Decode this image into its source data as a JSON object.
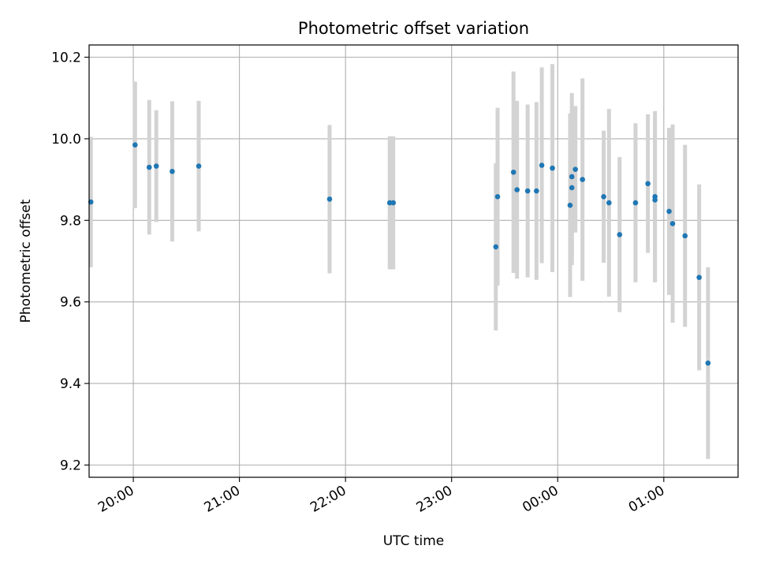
{
  "chart_data": {
    "type": "scatter",
    "title": "Photometric offset variation",
    "xlabel": "UTC time",
    "ylabel": "Photometric offset",
    "x_axis_kind": "time",
    "x_range": [
      "19:35",
      "01:42"
    ],
    "ylim": [
      9.17,
      10.23
    ],
    "grid": true,
    "x_ticks": [
      "20:00",
      "21:00",
      "22:00",
      "23:00",
      "00:00",
      "01:00"
    ],
    "y_ticks": [
      9.2,
      9.4,
      9.6,
      9.8,
      10.0,
      10.2
    ],
    "marker_color": "#1f77b4",
    "errorbar_color": "#d3d3d3",
    "points": [
      {
        "t": "19:36",
        "y": 9.845,
        "err": 0.16
      },
      {
        "t": "20:01",
        "y": 9.985,
        "err": 0.155
      },
      {
        "t": "20:09",
        "y": 9.93,
        "err": 0.165
      },
      {
        "t": "20:13",
        "y": 9.933,
        "err": 0.137
      },
      {
        "t": "20:22",
        "y": 9.92,
        "err": 0.172
      },
      {
        "t": "20:37",
        "y": 9.933,
        "err": 0.16
      },
      {
        "t": "21:51",
        "y": 9.852,
        "err": 0.182
      },
      {
        "t": "22:25",
        "y": 9.843,
        "err": 0.163
      },
      {
        "t": "22:27",
        "y": 9.843,
        "err": 0.163
      },
      {
        "t": "23:25",
        "y": 9.735,
        "err": 0.205
      },
      {
        "t": "23:26",
        "y": 9.858,
        "err": 0.218
      },
      {
        "t": "23:35",
        "y": 9.918,
        "err": 0.247
      },
      {
        "t": "23:37",
        "y": 9.875,
        "err": 0.218
      },
      {
        "t": "23:43",
        "y": 9.872,
        "err": 0.212
      },
      {
        "t": "23:48",
        "y": 9.872,
        "err": 0.218
      },
      {
        "t": "23:51",
        "y": 9.935,
        "err": 0.24
      },
      {
        "t": "23:57",
        "y": 9.928,
        "err": 0.255
      },
      {
        "t": "00:07",
        "y": 9.837,
        "err": 0.225
      },
      {
        "t": "00:08",
        "y": 9.88,
        "err": 0.19
      },
      {
        "t": "00:08",
        "y": 9.907,
        "err": 0.205
      },
      {
        "t": "00:10",
        "y": 9.925,
        "err": 0.155
      },
      {
        "t": "00:14",
        "y": 9.9,
        "err": 0.248
      },
      {
        "t": "00:26",
        "y": 9.858,
        "err": 0.162
      },
      {
        "t": "00:29",
        "y": 9.843,
        "err": 0.23
      },
      {
        "t": "00:35",
        "y": 9.765,
        "err": 0.19
      },
      {
        "t": "00:44",
        "y": 9.843,
        "err": 0.195
      },
      {
        "t": "00:51",
        "y": 9.89,
        "err": 0.17
      },
      {
        "t": "00:55",
        "y": 9.858,
        "err": 0.21
      },
      {
        "t": "00:55",
        "y": 9.85,
        "err": 0.2
      },
      {
        "t": "01:03",
        "y": 9.822,
        "err": 0.205
      },
      {
        "t": "01:05",
        "y": 9.792,
        "err": 0.243
      },
      {
        "t": "01:12",
        "y": 9.762,
        "err": 0.223
      },
      {
        "t": "01:20",
        "y": 9.66,
        "err": 0.228
      },
      {
        "t": "01:25",
        "y": 9.45,
        "err": 0.235
      }
    ]
  }
}
